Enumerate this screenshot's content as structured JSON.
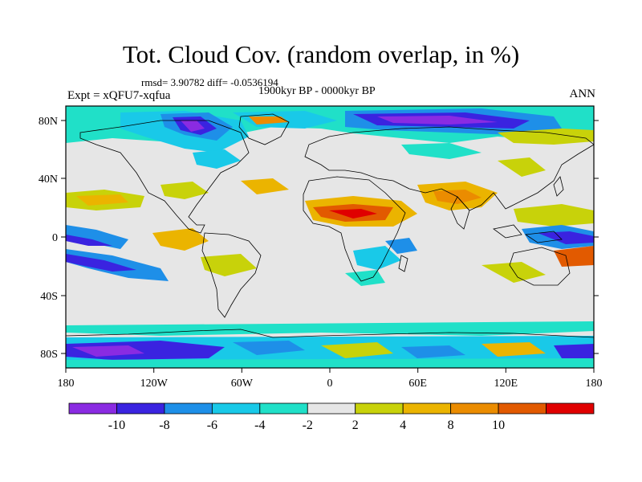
{
  "header": {
    "title": "Tot. Cloud Cov. (random overlap, in %)",
    "stats": "rmsd= 3.90782 diff= -0.0536194",
    "period": "1900kyr BP - 0000kyr BP",
    "experiment": "Expt = xQFU7-xqfua",
    "season": "ANN"
  },
  "axes": {
    "lat_labels": [
      "80N",
      "40N",
      "0",
      "40S",
      "80S"
    ],
    "lon_labels": [
      "180",
      "120W",
      "60W",
      "0",
      "60E",
      "120E",
      "180"
    ]
  },
  "colorbar": {
    "labels": [
      "-10",
      "-8",
      "-6",
      "-4",
      "-2",
      "2",
      "4",
      "8",
      "10"
    ],
    "colors": [
      "#8a2be2",
      "#3a23e0",
      "#1e8fe8",
      "#19c9e8",
      "#20e0c8",
      "#e6e6e6",
      "#c8d20a",
      "#ebb400",
      "#eb8c00",
      "#e25a00",
      "#e00000"
    ]
  },
  "map": {
    "background_color": "#e6e6e6"
  }
}
